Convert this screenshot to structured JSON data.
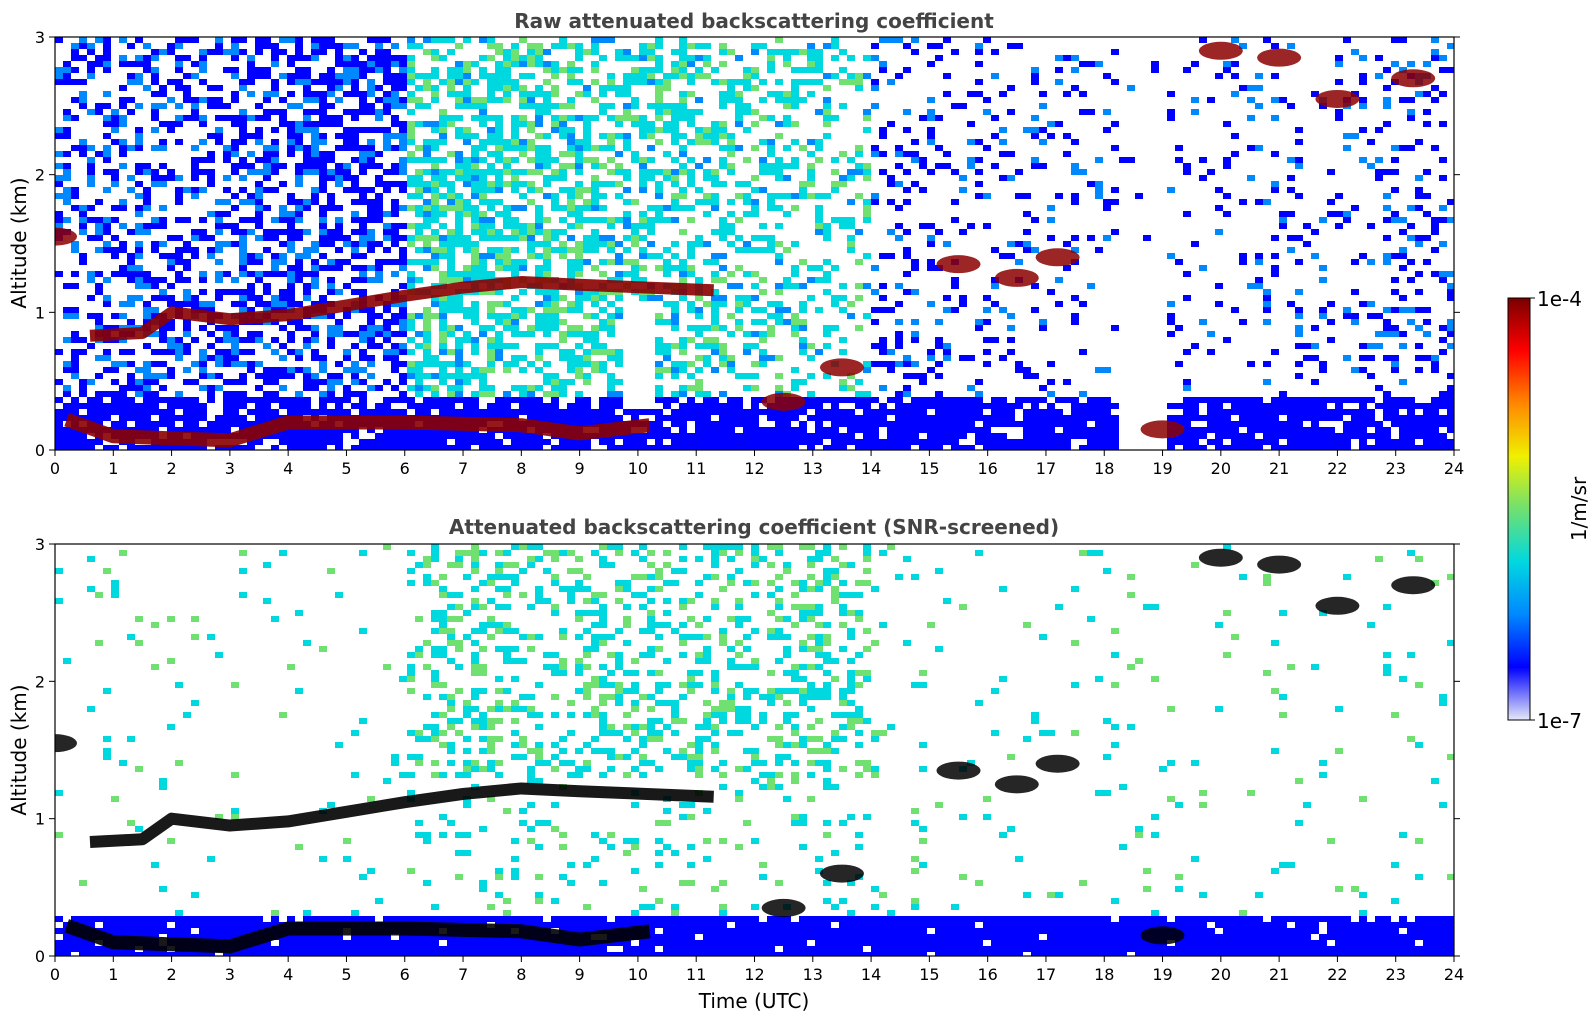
{
  "chart_data": [
    {
      "type": "heatmap",
      "title": "Raw attenuated backscattering coefficient",
      "xlabel": "",
      "ylabel": "Altitude (km)",
      "xlim": [
        0,
        24
      ],
      "ylim": [
        0,
        3
      ],
      "xticks": [
        "0",
        "1",
        "2",
        "3",
        "4",
        "5",
        "6",
        "7",
        "8",
        "9",
        "10",
        "11",
        "12",
        "13",
        "14",
        "15",
        "16",
        "17",
        "18",
        "19",
        "20",
        "21",
        "22",
        "23",
        "24"
      ],
      "yticks": [
        "0",
        "1",
        "2",
        "3"
      ],
      "features": {
        "surface_layer": [
          [
            0.2,
            0.22
          ],
          [
            1,
            0.1
          ],
          [
            3,
            0.07
          ],
          [
            4,
            0.2
          ],
          [
            6,
            0.2
          ],
          [
            8,
            0.18
          ],
          [
            9,
            0.12
          ],
          [
            10.2,
            0.18
          ]
        ],
        "cloud_layer": [
          [
            0.6,
            0.83
          ],
          [
            1.5,
            0.85
          ],
          [
            2,
            1.0
          ],
          [
            3,
            0.95
          ],
          [
            4,
            0.98
          ],
          [
            5,
            1.05
          ],
          [
            6,
            1.12
          ],
          [
            7,
            1.18
          ],
          [
            8,
            1.22
          ],
          [
            9,
            1.2
          ],
          [
            11.3,
            1.16
          ]
        ],
        "isolated_clouds": [
          [
            0,
            1.55
          ],
          [
            12.5,
            0.35
          ],
          [
            13.5,
            0.6
          ],
          [
            15.5,
            1.35
          ],
          [
            16.5,
            1.25
          ],
          [
            17.2,
            1.4
          ],
          [
            19,
            0.15
          ],
          [
            20,
            2.9
          ],
          [
            21,
            2.85
          ],
          [
            22,
            2.55
          ],
          [
            23.3,
            2.7
          ]
        ]
      }
    },
    {
      "type": "heatmap",
      "title": "Attenuated backscattering coefficient (SNR-screened)",
      "xlabel": "Time (UTC)",
      "ylabel": "Altitude (km)",
      "xlim": [
        0,
        24
      ],
      "ylim": [
        0,
        3
      ],
      "xticks": [
        "0",
        "1",
        "2",
        "3",
        "4",
        "5",
        "6",
        "7",
        "8",
        "9",
        "10",
        "11",
        "12",
        "13",
        "14",
        "15",
        "16",
        "17",
        "18",
        "19",
        "20",
        "21",
        "22",
        "23",
        "24"
      ],
      "yticks": [
        "0",
        "1",
        "2",
        "3"
      ]
    }
  ],
  "colorbar": {
    "label": "1/m/sr",
    "max_label": "1e-4",
    "min_label": "1e-7",
    "colors": [
      "#e6e9f6",
      "#0000ff",
      "#0088ff",
      "#00d8e0",
      "#70e070",
      "#f0f000",
      "#ff8800",
      "#ff0000",
      "#7a0000"
    ]
  }
}
